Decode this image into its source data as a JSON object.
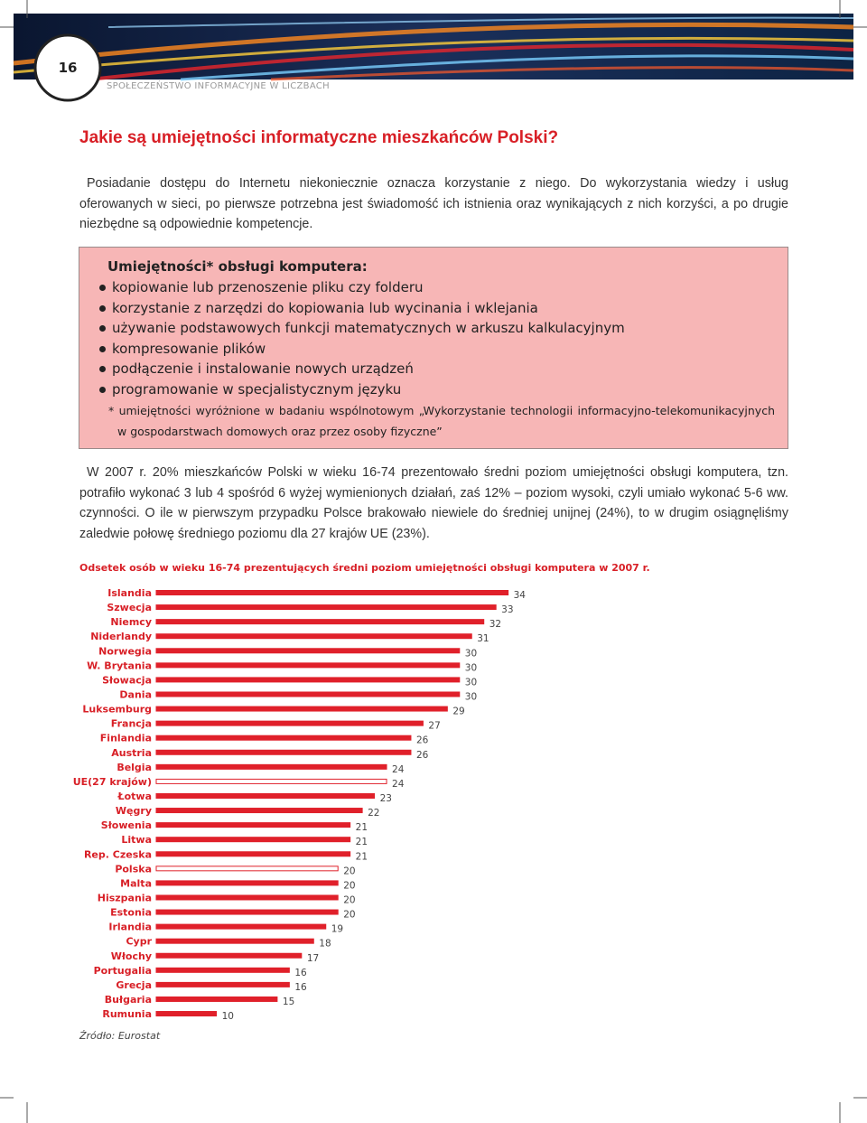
{
  "header": {
    "page_number": "16",
    "section": "SPOŁECZEŃSTWO INFORMACYJNE W LICZBACH"
  },
  "heading": "Jakie są umiejętności informatyczne mieszkańców Polski?",
  "intro": "Posiadanie dostępu do Internetu niekoniecznie oznacza korzystanie z niego. Do wykorzystania wiedzy i usług oferowanych w sieci, po pierwsze potrzebna jest świadomość ich istnienia oraz wynikających z nich korzyści, a po drugie niezbędne są odpowiednie kompetencje.",
  "box": {
    "title": "Umiejętności* obsługi komputera:",
    "items": [
      "kopiowanie lub przenoszenie pliku czy folderu",
      "korzystanie z narzędzi do kopiowania lub wycinania i wklejania",
      "używanie podstawowych funkcji matematycznych w arkuszu kalkulacyjnym",
      "kompresowanie plików",
      "podłączenie i instalowanie nowych urządzeń",
      "programowanie w specjalistycznym języku"
    ],
    "footnote": "* umiejętności wyróżnione w badaniu wspólnotowym „Wykorzystanie technologii informacyjno-telekomunikacyjnych w gospodarstwach domowych oraz przez osoby fizyczne”"
  },
  "body": "W 2007 r. 20% mieszkańców Polski w wieku 16-74 prezentowało średni poziom umiejętności obsługi komputera, tzn. potrafiło wykonać 3 lub 4 spośród 6 wyżej wymienionych działań, zaś 12% – poziom wysoki, czyli umiało wykonać 5-6 ww. czynności. O ile w pierwszym przypadku Polsce brakowało niewiele do średniej unijnej (24%), to w drugim osiągnęliśmy zaledwie połowę średniego poziomu dla 27 krajów UE (23%).",
  "chart_data": {
    "type": "bar",
    "orientation": "horizontal",
    "title": "Odsetek osób w wieku 16-74 prezentujących średni poziom umiejętności obsługi komputera w 2007 r.",
    "categories": [
      "Islandia",
      "Szwecja",
      "Niemcy",
      "Niderlandy",
      "Norwegia",
      "W. Brytania",
      "Słowacja",
      "Dania",
      "Luksemburg",
      "Francja",
      "Finlandia",
      "Austria",
      "Belgia",
      "UE(27 krajów)",
      "Łotwa",
      "Węgry",
      "Słowenia",
      "Litwa",
      "Rep. Czeska",
      "Polska",
      "Malta",
      "Hiszpania",
      "Estonia",
      "Irlandia",
      "Cypr",
      "Włochy",
      "Portugalia",
      "Grecja",
      "Bułgaria",
      "Rumunia"
    ],
    "values": [
      34,
      33,
      32,
      31,
      30,
      30,
      30,
      30,
      29,
      27,
      26,
      26,
      24,
      24,
      23,
      22,
      21,
      21,
      21,
      20,
      20,
      20,
      20,
      19,
      18,
      17,
      16,
      16,
      15,
      10
    ],
    "colors": [
      "#e0202a",
      "#e0202a",
      "#e0202a",
      "#e0202a",
      "#e0202a",
      "#e0202a",
      "#e0202a",
      "#e0202a",
      "#e0202a",
      "#e0202a",
      "#e0202a",
      "#e0202a",
      "#e0202a",
      "#ffffff",
      "#e0202a",
      "#e0202a",
      "#e0202a",
      "#e0202a",
      "#e0202a",
      "#ffffff",
      "#e0202a",
      "#e0202a",
      "#e0202a",
      "#e0202a",
      "#e0202a",
      "#e0202a",
      "#e0202a",
      "#e0202a",
      "#e0202a",
      "#e0202a"
    ],
    "edge_color": "#e0202a"
  },
  "source": "Źródło: Eurostat"
}
